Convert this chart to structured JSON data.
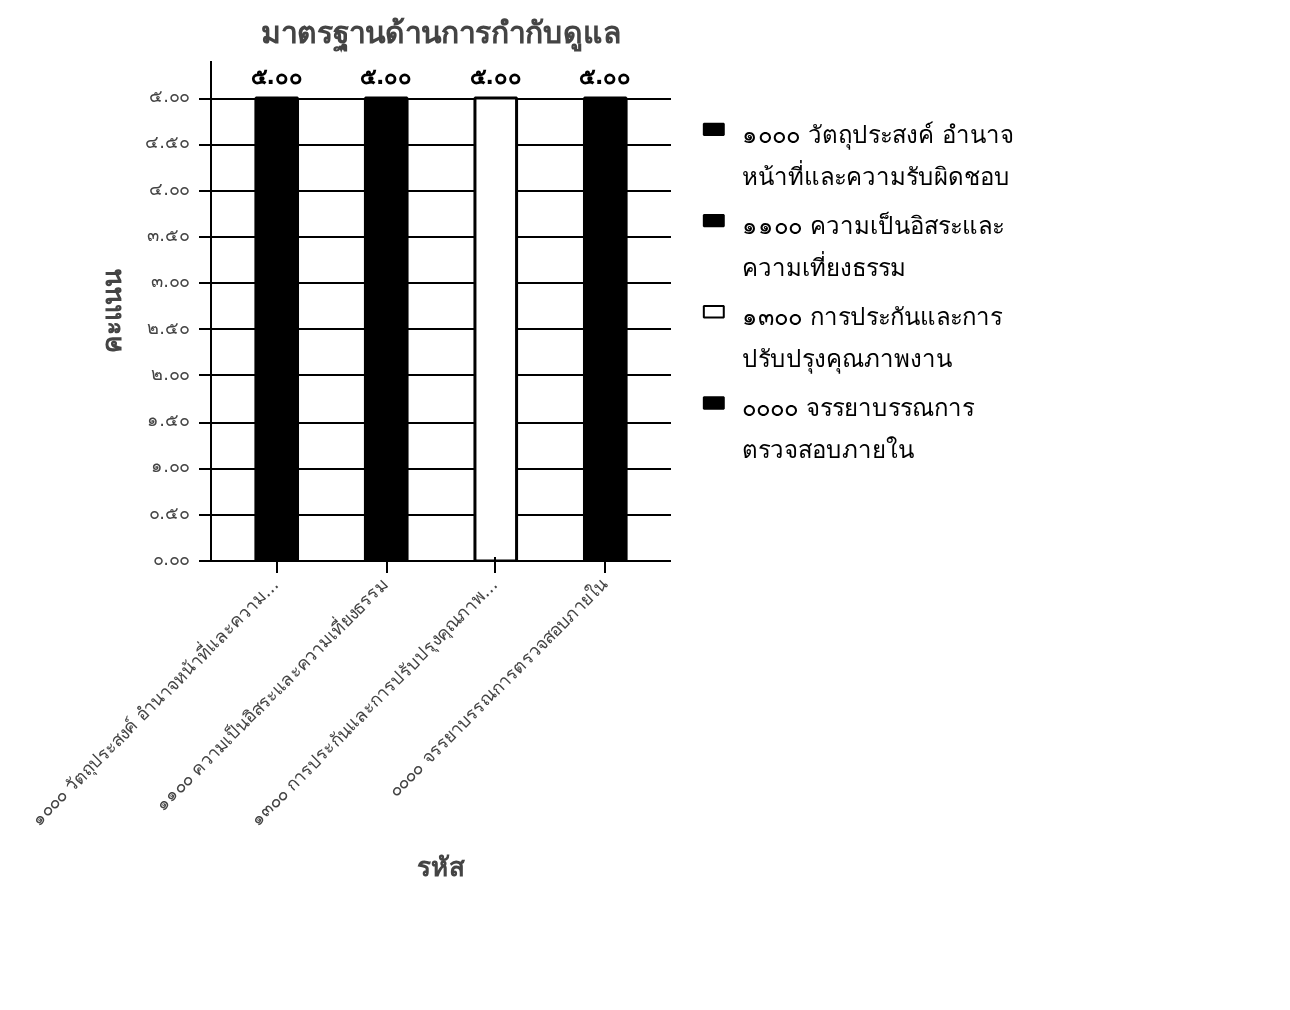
{
  "chart_data": {
    "type": "bar",
    "title": "มาตรฐานด้านการกำกับดูแล",
    "ylabel": "คะแนน",
    "xlabel": "รหัส",
    "categories": [
      "๑๐๐๐ วัตถุประสงค์ อำนาจหน้าที่และความ...",
      "๑๑๐๐ ความเป็นอิสระและความเที่ยงธรรม",
      "๑๓๐๐ การประกันและการปรับปรุงคุณภาพ...",
      "๐๐๐๐ จรรยาบรรณการตรวจสอบภายใน"
    ],
    "series": [
      {
        "name": "๑๐๐๐ วัตถุประสงค์ อำนาจ\nหน้าที่และความรับผิดชอบ",
        "color": "#000000",
        "values": [
          5,
          null,
          null,
          null
        ],
        "value_labels": [
          "๕.๐๐",
          null,
          null,
          null
        ]
      },
      {
        "name": "๑๑๐๐ ความเป็นอิสระและ\nความเที่ยงธรรม",
        "color": "#000000",
        "values": [
          null,
          5,
          null,
          null
        ],
        "value_labels": [
          null,
          "๕.๐๐",
          null,
          null
        ]
      },
      {
        "name": "๑๓๐๐ การประกันและการ\nปรับปรุงคุณภาพงาน",
        "color": "#ffffff",
        "values": [
          null,
          null,
          5,
          null
        ],
        "value_labels": [
          null,
          null,
          "๕.๐๐",
          null
        ]
      },
      {
        "name": "๐๐๐๐ จรรยาบรรณการ\nตรวจสอบภายใน",
        "color": "#000000",
        "values": [
          null,
          null,
          null,
          5
        ],
        "value_labels": [
          null,
          null,
          null,
          "๕.๐๐"
        ]
      }
    ],
    "ylim": [
      0,
      5.4
    ],
    "yticks": [
      {
        "value": 0,
        "label": "๐.๐๐"
      },
      {
        "value": 0.5,
        "label": "๐.๕๐"
      },
      {
        "value": 1,
        "label": "๑.๐๐"
      },
      {
        "value": 1.5,
        "label": "๑.๕๐"
      },
      {
        "value": 2,
        "label": "๒.๐๐"
      },
      {
        "value": 2.5,
        "label": "๒.๕๐"
      },
      {
        "value": 3,
        "label": "๓.๐๐"
      },
      {
        "value": 3.5,
        "label": "๓.๕๐"
      },
      {
        "value": 4,
        "label": "๔.๐๐"
      },
      {
        "value": 4.5,
        "label": "๔.๕๐"
      },
      {
        "value": 5,
        "label": "๕.๐๐"
      }
    ],
    "grid": "y",
    "legend": "right"
  }
}
